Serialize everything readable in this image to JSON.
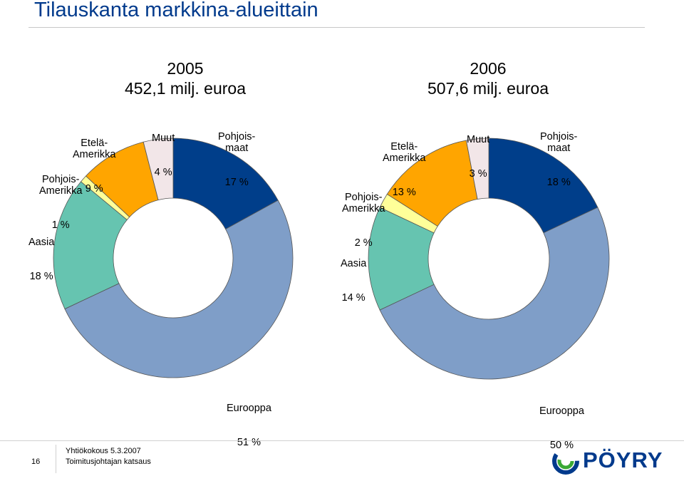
{
  "slide": {
    "title": "Tilauskanta markkina-alueittain",
    "page_number": "16",
    "footer_line1": "Yhtiökokous 5.3.2007",
    "footer_line2": "Toimitusjohtajan katsaus",
    "logo_text": "PÖYRY"
  },
  "colors": {
    "Pohjoismaat": "#003e8a",
    "Eurooppa": "#7f9ec8",
    "Aasia": "#66c4b0",
    "Pohjois-Amerikka": "#ffff99",
    "Etelä-Amerikka": "#ffa500",
    "Muut": "#f2e6e8",
    "title": "#003a8c"
  },
  "chart_data": [
    {
      "type": "pie",
      "donut": true,
      "heading_year": "2005",
      "heading_total": "452,1 milj. euroa",
      "slices": [
        {
          "name": "Pohjoismaat",
          "value": 17,
          "label_name": "Pohjois-\nmaat",
          "label_value": "17 %"
        },
        {
          "name": "Eurooppa",
          "value": 51,
          "label_name": "Eurooppa",
          "label_value": "51 %"
        },
        {
          "name": "Aasia",
          "value": 18,
          "label_name": "Aasia",
          "label_value": "18 %"
        },
        {
          "name": "Pohjois-Amerikka",
          "value": 1,
          "label_name": "Pohjois-\nAmerikka",
          "label_value": "1 %"
        },
        {
          "name": "Etelä-Amerikka",
          "value": 9,
          "label_name": "Etelä-\nAmerikka",
          "label_value": "9 %"
        },
        {
          "name": "Muut",
          "value": 4,
          "label_name": "Muut",
          "label_value": "4 %"
        }
      ]
    },
    {
      "type": "pie",
      "donut": true,
      "heading_year": "2006",
      "heading_total": "507,6 milj. euroa",
      "slices": [
        {
          "name": "Pohjoismaat",
          "value": 18,
          "label_name": "Pohjois-\nmaat",
          "label_value": "18 %"
        },
        {
          "name": "Eurooppa",
          "value": 50,
          "label_name": "Eurooppa",
          "label_value": "50 %"
        },
        {
          "name": "Aasia",
          "value": 14,
          "label_name": "Aasia",
          "label_value": "14 %"
        },
        {
          "name": "Pohjois-Amerikka",
          "value": 2,
          "label_name": "Pohjois-\nAmerikka",
          "label_value": "2 %"
        },
        {
          "name": "Etelä-Amerikka",
          "value": 13,
          "label_name": "Etelä-\nAmerikka",
          "label_value": "13 %"
        },
        {
          "name": "Muut",
          "value": 3,
          "label_name": "Muut",
          "label_value": "3 %"
        }
      ]
    }
  ]
}
